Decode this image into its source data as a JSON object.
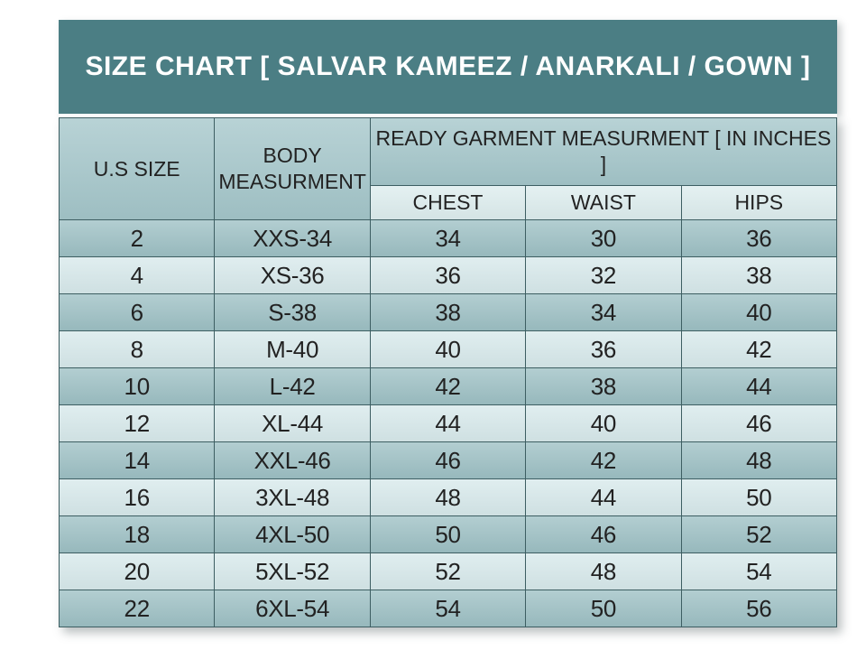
{
  "chart_data": {
    "type": "table",
    "title": "SIZE CHART [ SALVAR KAMEEZ / ANARKALI / GOWN ]",
    "columns": [
      "U.S SIZE",
      "BODY MEASURMENT",
      "CHEST",
      "WAIST",
      "HIPS"
    ],
    "column_group": {
      "label": "READY GARMENT MEASURMENT [ IN INCHES ]",
      "spans": [
        "CHEST",
        "WAIST",
        "HIPS"
      ]
    },
    "units": "inches",
    "rows": [
      [
        "2",
        "XXS-34",
        "34",
        "30",
        "36"
      ],
      [
        "4",
        "XS-36",
        "36",
        "32",
        "38"
      ],
      [
        "6",
        "S-38",
        "38",
        "34",
        "40"
      ],
      [
        "8",
        "M-40",
        "40",
        "36",
        "42"
      ],
      [
        "10",
        "L-42",
        "42",
        "38",
        "44"
      ],
      [
        "12",
        "XL-44",
        "44",
        "40",
        "46"
      ],
      [
        "14",
        "XXL-46",
        "46",
        "42",
        "48"
      ],
      [
        "16",
        "3XL-48",
        "48",
        "44",
        "50"
      ],
      [
        "18",
        "4XL-50",
        "50",
        "46",
        "52"
      ],
      [
        "20",
        "5XL-52",
        "52",
        "48",
        "54"
      ],
      [
        "22",
        "6XL-54",
        "54",
        "50",
        "56"
      ]
    ]
  },
  "colors": {
    "title_bg": "#4b7e84",
    "title_text": "#ffffff",
    "header_bg": "#a4c6ca",
    "subheader_bg": "#ddedee",
    "row_dark": "#9dc0c4",
    "row_light": "#d7e9eb",
    "border": "#3d5e62",
    "text": "#222222"
  }
}
